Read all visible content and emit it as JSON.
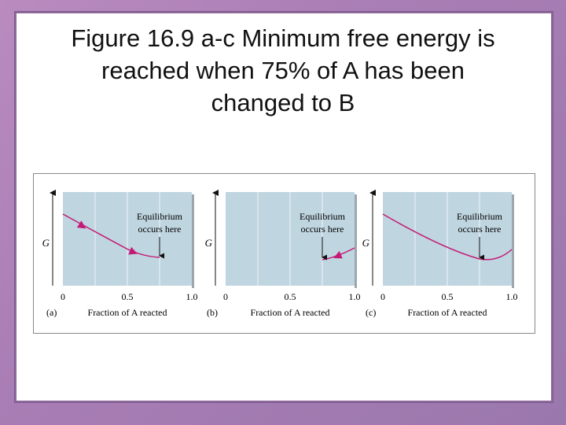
{
  "title": {
    "line1": "Figure 16.9 a-c  Minimum free energy is",
    "line2": "reached when 75% of A has been",
    "line3": "changed to B"
  },
  "panels": [
    {
      "letter": "(a)",
      "axis_y": "G",
      "ticks": [
        "0",
        "0.5",
        "1.0"
      ],
      "xlabel": "Fraction of A reacted",
      "annotation_line1": "Equilibrium",
      "annotation_line2": "occurs here"
    },
    {
      "letter": "(b)",
      "axis_y": "G",
      "ticks": [
        "0",
        "0.5",
        "1.0"
      ],
      "xlabel": "Fraction of A reacted",
      "annotation_line1": "Equilibrium",
      "annotation_line2": "occurs here"
    },
    {
      "letter": "(c)",
      "axis_y": "G",
      "ticks": [
        "0",
        "0.5",
        "1.0"
      ],
      "xlabel": "Fraction of A reacted",
      "annotation_line1": "Equilibrium",
      "annotation_line2": "occurs here"
    }
  ],
  "colors": {
    "panel_bg": "#bcd3de",
    "curve": "#c41a76",
    "frame": "#b98bbf"
  }
}
